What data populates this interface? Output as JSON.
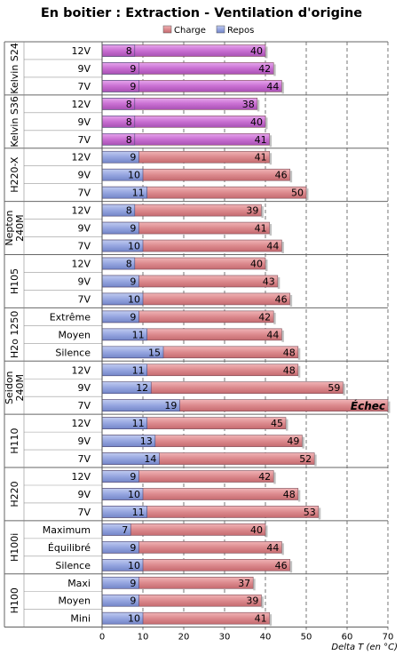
{
  "chart_data": {
    "type": "bar",
    "orientation": "horizontal",
    "title": "En boitier : Extraction - Ventilation d'origine",
    "xlabel": "Delta T (en °C)",
    "xlim": [
      0,
      70
    ],
    "xticks": [
      0,
      10,
      20,
      30,
      40,
      50,
      60,
      70
    ],
    "grid": true,
    "legend": {
      "position": "top",
      "entries": [
        "Charge",
        "Repos"
      ]
    },
    "colors": {
      "charge": "#d97e82",
      "repos": "#8f9fdb",
      "kelvin": "#c566cf"
    },
    "groups": [
      {
        "name": "Kelvin S24",
        "rows": [
          {
            "label": "12V",
            "repos": 8,
            "charge": 40
          },
          {
            "label": "9V",
            "repos": 9,
            "charge": 42
          },
          {
            "label": "7V",
            "repos": 9,
            "charge": 44
          }
        ]
      },
      {
        "name": "Kelvin S36",
        "rows": [
          {
            "label": "12V",
            "repos": 8,
            "charge": 38
          },
          {
            "label": "9V",
            "repos": 8,
            "charge": 40
          },
          {
            "label": "7V",
            "repos": 8,
            "charge": 41
          }
        ]
      },
      {
        "name": "H220-X",
        "rows": [
          {
            "label": "12V",
            "repos": 9,
            "charge": 41
          },
          {
            "label": "9V",
            "repos": 10,
            "charge": 46
          },
          {
            "label": "7V",
            "repos": 11,
            "charge": 50
          }
        ]
      },
      {
        "name": "Nepton 240M",
        "rows": [
          {
            "label": "12V",
            "repos": 8,
            "charge": 39
          },
          {
            "label": "9V",
            "repos": 9,
            "charge": 41
          },
          {
            "label": "7V",
            "repos": 10,
            "charge": 44
          }
        ]
      },
      {
        "name": "H105",
        "rows": [
          {
            "label": "12V",
            "repos": 8,
            "charge": 40
          },
          {
            "label": "9V",
            "repos": 9,
            "charge": 43
          },
          {
            "label": "7V",
            "repos": 10,
            "charge": 46
          }
        ]
      },
      {
        "name": "H2o 1250",
        "rows": [
          {
            "label": "Extrême",
            "repos": 9,
            "charge": 42
          },
          {
            "label": "Moyen",
            "repos": 11,
            "charge": 44
          },
          {
            "label": "Silence",
            "repos": 15,
            "charge": 48
          }
        ]
      },
      {
        "name": "Seidon 240M",
        "rows": [
          {
            "label": "12V",
            "repos": 11,
            "charge": 48
          },
          {
            "label": "9V",
            "repos": 12,
            "charge": 59
          },
          {
            "label": "7V",
            "repos": 19,
            "charge": null,
            "charge_text": "Échec"
          }
        ]
      },
      {
        "name": "H110",
        "rows": [
          {
            "label": "12V",
            "repos": 11,
            "charge": 45
          },
          {
            "label": "9V",
            "repos": 13,
            "charge": 49
          },
          {
            "label": "7V",
            "repos": 14,
            "charge": 52
          }
        ]
      },
      {
        "name": "H220",
        "rows": [
          {
            "label": "12V",
            "repos": 9,
            "charge": 42
          },
          {
            "label": "9V",
            "repos": 10,
            "charge": 48
          },
          {
            "label": "7V",
            "repos": 11,
            "charge": 53
          }
        ]
      },
      {
        "name": "H100i",
        "rows": [
          {
            "label": "Maximum",
            "repos": 7,
            "charge": 40
          },
          {
            "label": "Équilibré",
            "repos": 9,
            "charge": 44
          },
          {
            "label": "Silence",
            "repos": 10,
            "charge": 46
          }
        ]
      },
      {
        "name": "H100",
        "rows": [
          {
            "label": "Maxi",
            "repos": 9,
            "charge": 37
          },
          {
            "label": "Moyen",
            "repos": 9,
            "charge": 39
          },
          {
            "label": "Mini",
            "repos": 10,
            "charge": 41
          }
        ]
      }
    ]
  }
}
